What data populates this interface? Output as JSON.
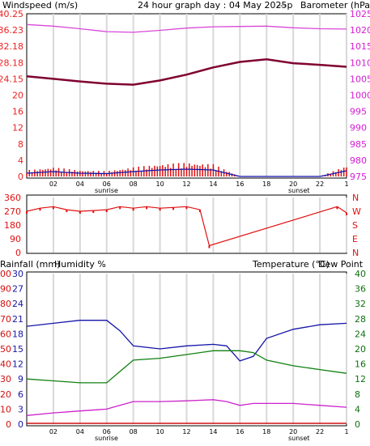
{
  "header": {
    "left_title": "Windspeed (m/s)",
    "center_title": "24 hour graph day : 04 May 2025p",
    "dashes": "---",
    "right_title": "Barometer (hPa)"
  },
  "mid_labels": {
    "left_title": "Rainfall (mm)",
    "humidity_title": "Humidity %",
    "temp_title": "Temperature (°C)",
    "dew_title": "Dew Point"
  },
  "x_ticks": [
    "02",
    "04",
    "06",
    "08",
    "10",
    "12",
    "14",
    "16",
    "18",
    "20",
    "22",
    "1"
  ],
  "sun_labels": {
    "sunrise": "sunrise",
    "sunset": "sunset"
  },
  "colors": {
    "wind_text": "#ee2020",
    "baro_text": "#d41cd4",
    "baro_line": "#d848d8",
    "temp_line": "#800030",
    "wind_bar": "#e01010",
    "wind_line": "#1010b0",
    "dir_text": "#e01010",
    "hum_text": "#1414a8",
    "hum_line": "#1414a8",
    "temp_text": "#107010",
    "temp2_line": "#108010",
    "dew_line": "#cc22cc",
    "rain_text": "#d01010",
    "grid": "#d8d8d8"
  },
  "chart_data": [
    {
      "type": "line",
      "title": "24 hour graph day : 04 May 2025p",
      "left_axis": {
        "label": "Windspeed (m/s)",
        "ticks": [
          "0",
          "4",
          "8",
          "12",
          "16",
          "20",
          "24.15",
          "28.18",
          "32.18",
          "36.23",
          "40.25"
        ],
        "ylim": [
          0,
          40.25
        ]
      },
      "right_axis": {
        "label": "Barometer (hPa)",
        "ticks": [
          "975",
          "980",
          "985",
          "990",
          "995",
          "1000",
          "1005",
          "1010",
          "1015",
          "1020",
          "1025"
        ],
        "ylim": [
          975,
          1025
        ]
      },
      "x": [
        0,
        2,
        4,
        6,
        8,
        10,
        12,
        14,
        16,
        18,
        20,
        22,
        24
      ],
      "series": [
        {
          "name": "Barometer (hPa)",
          "values": [
            1021.7,
            1021.2,
            1020.4,
            1019.5,
            1019.3,
            1019.9,
            1020.6,
            1021.0,
            1021.1,
            1021.2,
            1020.7,
            1020.4,
            1020.3
          ]
        },
        {
          "name": "Temperature",
          "values": [
            1005.8,
            1005.0,
            1004.2,
            1003.5,
            1003.2,
            1004.5,
            1006.3,
            1008.5,
            1010.2,
            1011.0,
            1009.8,
            1009.3,
            1008.7
          ]
        },
        {
          "name": "Windspeed (m/s)",
          "values": [
            0.8,
            1.2,
            0.8,
            0.7,
            1.2,
            1.6,
            1.8,
            1.6,
            0.0,
            0.0,
            0.0,
            0.0,
            1.4
          ]
        }
      ]
    },
    {
      "type": "scatter",
      "left_axis": {
        "ticks": [
          "0",
          "90",
          "180",
          "270",
          "360"
        ],
        "ylim": [
          0,
          360
        ]
      },
      "right_axis": {
        "ticks": [
          "N",
          "E",
          "S",
          "W",
          "N"
        ]
      },
      "x": [
        0,
        1,
        2,
        3,
        4,
        5,
        6,
        7,
        8,
        9,
        10,
        11,
        12,
        13,
        13.7,
        23.3,
        24
      ],
      "series": [
        {
          "name": "Wind direction",
          "values": [
            270,
            290,
            300,
            280,
            270,
            275,
            280,
            300,
            290,
            300,
            290,
            295,
            300,
            280,
            45,
            300,
            260
          ]
        }
      ]
    },
    {
      "type": "line",
      "left_axis": {
        "label": "Rainfall (mm)",
        "ticks": [
          "0",
          "10",
          "20",
          "30",
          "40",
          "50",
          "60",
          "70",
          "80",
          "90",
          "100"
        ]
      },
      "humidity_axis": {
        "label": "Humidity %",
        "ticks": [
          "0",
          "3",
          "6",
          "9",
          "12",
          "15",
          "18",
          "21",
          "24",
          "27",
          "30"
        ]
      },
      "right_axis": {
        "label": "Temperature (°C)",
        "ticks": [
          "0",
          "4",
          "8",
          "12",
          "16",
          "20",
          "24",
          "28",
          "32",
          "36",
          "40"
        ]
      },
      "x": [
        0,
        2,
        4,
        6,
        7,
        8,
        10,
        12,
        14,
        15,
        16,
        17,
        18,
        20,
        22,
        24
      ],
      "series": [
        {
          "name": "Humidity %",
          "values": [
            65,
            67,
            69,
            69,
            62,
            52,
            50,
            52,
            53,
            52,
            42,
            45,
            57,
            63,
            66,
            67
          ]
        },
        {
          "name": "Temperature (°C)",
          "values": [
            12,
            11.5,
            11,
            11,
            14,
            17,
            17.5,
            18.5,
            19.5,
            19.5,
            19.5,
            19,
            17,
            15.5,
            14.5,
            13.5
          ]
        },
        {
          "name": "Dew Point",
          "values": [
            2.3,
            3,
            3.5,
            4,
            5,
            6,
            6,
            6.2,
            6.5,
            6,
            5,
            5.5,
            5.5,
            5.5,
            5,
            4.5
          ]
        },
        {
          "name": "Rainfall (mm)",
          "values": [
            0,
            0,
            0,
            0,
            0,
            0,
            0,
            0,
            0,
            0,
            0,
            0,
            0,
            0,
            0,
            0
          ]
        }
      ]
    }
  ]
}
